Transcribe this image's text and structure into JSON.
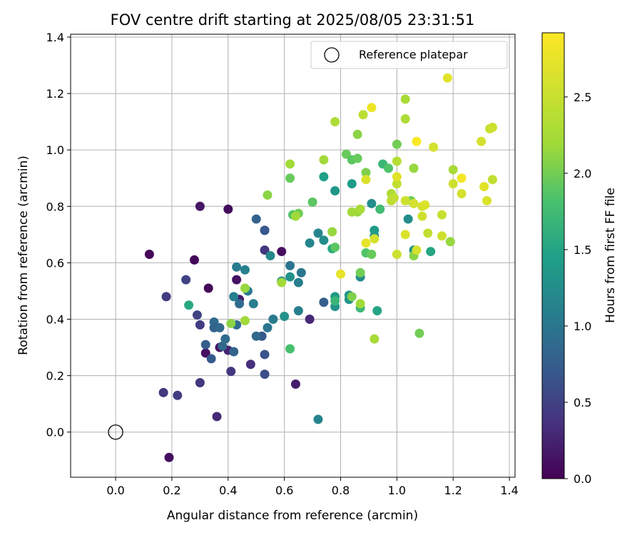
{
  "chart_data": {
    "type": "scatter",
    "title": "FOV centre drift starting at 2025/08/05 23:31:51",
    "xlabel": "Angular distance from reference (arcmin)",
    "ylabel": "Rotation from reference (arcmin)",
    "xlim": [
      -0.16,
      1.42
    ],
    "ylim": [
      -0.16,
      1.41
    ],
    "xticks": [
      0.0,
      0.2,
      0.4,
      0.6,
      0.8,
      1.0,
      1.2,
      1.4
    ],
    "yticks": [
      0.0,
      0.2,
      0.4,
      0.6,
      0.8,
      1.0,
      1.2,
      1.4
    ],
    "grid": true,
    "legend": {
      "placement": "top-right",
      "entries": [
        "Reference platepar"
      ]
    },
    "reference_point": {
      "x": 0.0,
      "y": 0.0
    },
    "colorbar": {
      "label": "Hours from first FF file",
      "colormap": "viridis",
      "range": [
        0.0,
        2.92
      ],
      "ticks": [
        0.0,
        0.5,
        1.0,
        1.5,
        2.0,
        2.5
      ]
    },
    "points": [
      {
        "x": 0.12,
        "y": 0.63,
        "c": 0.05
      },
      {
        "x": 0.19,
        "y": -0.09,
        "c": 0.1
      },
      {
        "x": 0.28,
        "y": 0.61,
        "c": 0.05
      },
      {
        "x": 0.3,
        "y": 0.8,
        "c": 0.15
      },
      {
        "x": 0.4,
        "y": 0.79,
        "c": 0.08
      },
      {
        "x": 0.33,
        "y": 0.51,
        "c": 0.05
      },
      {
        "x": 0.43,
        "y": 0.54,
        "c": 0.12
      },
      {
        "x": 0.44,
        "y": 0.47,
        "c": 0.2
      },
      {
        "x": 0.59,
        "y": 0.64,
        "c": 0.1
      },
      {
        "x": 0.64,
        "y": 0.17,
        "c": 0.2
      },
      {
        "x": 0.32,
        "y": 0.28,
        "c": 0.1
      },
      {
        "x": 0.37,
        "y": 0.3,
        "c": 0.15
      },
      {
        "x": 0.4,
        "y": 0.29,
        "c": 0.25
      },
      {
        "x": 0.36,
        "y": 0.055,
        "c": 0.3
      },
      {
        "x": 0.17,
        "y": 0.14,
        "c": 0.4
      },
      {
        "x": 0.22,
        "y": 0.13,
        "c": 0.45
      },
      {
        "x": 0.3,
        "y": 0.175,
        "c": 0.4
      },
      {
        "x": 0.18,
        "y": 0.48,
        "c": 0.45
      },
      {
        "x": 0.25,
        "y": 0.54,
        "c": 0.5
      },
      {
        "x": 0.29,
        "y": 0.415,
        "c": 0.5
      },
      {
        "x": 0.3,
        "y": 0.38,
        "c": 0.45
      },
      {
        "x": 0.41,
        "y": 0.215,
        "c": 0.4
      },
      {
        "x": 0.48,
        "y": 0.24,
        "c": 0.35
      },
      {
        "x": 0.53,
        "y": 0.645,
        "c": 0.4
      },
      {
        "x": 0.69,
        "y": 0.4,
        "c": 0.3
      },
      {
        "x": 0.53,
        "y": 0.715,
        "c": 0.5
      },
      {
        "x": 0.34,
        "y": 0.26,
        "c": 0.7
      },
      {
        "x": 0.32,
        "y": 0.31,
        "c": 0.75
      },
      {
        "x": 0.38,
        "y": 0.305,
        "c": 0.85
      },
      {
        "x": 0.42,
        "y": 0.285,
        "c": 0.8
      },
      {
        "x": 0.35,
        "y": 0.39,
        "c": 0.9
      },
      {
        "x": 0.35,
        "y": 0.37,
        "c": 0.8
      },
      {
        "x": 0.37,
        "y": 0.37,
        "c": 0.85
      },
      {
        "x": 0.39,
        "y": 0.33,
        "c": 0.9
      },
      {
        "x": 0.43,
        "y": 0.38,
        "c": 0.9
      },
      {
        "x": 0.44,
        "y": 0.455,
        "c": 0.9
      },
      {
        "x": 0.5,
        "y": 0.755,
        "c": 0.8
      },
      {
        "x": 0.53,
        "y": 0.715,
        "c": 0.7
      },
      {
        "x": 0.53,
        "y": 0.275,
        "c": 0.65
      },
      {
        "x": 0.53,
        "y": 0.205,
        "c": 0.6
      },
      {
        "x": 0.52,
        "y": 0.34,
        "c": 0.7
      },
      {
        "x": 0.5,
        "y": 0.34,
        "c": 0.85
      },
      {
        "x": 0.54,
        "y": 0.37,
        "c": 1.0
      },
      {
        "x": 0.56,
        "y": 0.4,
        "c": 1.05
      },
      {
        "x": 0.43,
        "y": 0.585,
        "c": 1.05
      },
      {
        "x": 0.46,
        "y": 0.575,
        "c": 1.1
      },
      {
        "x": 0.47,
        "y": 0.5,
        "c": 1.05
      },
      {
        "x": 0.49,
        "y": 0.455,
        "c": 1.1
      },
      {
        "x": 0.42,
        "y": 0.48,
        "c": 1.1
      },
      {
        "x": 0.55,
        "y": 0.625,
        "c": 1.2
      },
      {
        "x": 0.62,
        "y": 0.59,
        "c": 1.0
      },
      {
        "x": 0.66,
        "y": 0.565,
        "c": 1.0
      },
      {
        "x": 0.65,
        "y": 0.53,
        "c": 1.1
      },
      {
        "x": 0.65,
        "y": 0.43,
        "c": 1.1
      },
      {
        "x": 0.59,
        "y": 0.535,
        "c": 1.25
      },
      {
        "x": 0.6,
        "y": 0.41,
        "c": 1.3
      },
      {
        "x": 0.62,
        "y": 0.55,
        "c": 1.3
      },
      {
        "x": 0.69,
        "y": 0.67,
        "c": 1.15
      },
      {
        "x": 0.72,
        "y": 0.705,
        "c": 1.15
      },
      {
        "x": 0.74,
        "y": 0.68,
        "c": 1.25
      },
      {
        "x": 0.74,
        "y": 0.46,
        "c": 0.75
      },
      {
        "x": 0.72,
        "y": 0.045,
        "c": 1.15
      },
      {
        "x": 0.78,
        "y": 0.855,
        "c": 1.35
      },
      {
        "x": 0.74,
        "y": 0.905,
        "c": 1.45
      },
      {
        "x": 0.78,
        "y": 0.445,
        "c": 1.3
      },
      {
        "x": 0.78,
        "y": 0.48,
        "c": 1.4
      },
      {
        "x": 0.83,
        "y": 0.47,
        "c": 1.3
      },
      {
        "x": 0.83,
        "y": 0.485,
        "c": 1.35
      },
      {
        "x": 0.84,
        "y": 0.88,
        "c": 1.4
      },
      {
        "x": 0.87,
        "y": 0.55,
        "c": 1.25
      },
      {
        "x": 0.91,
        "y": 0.81,
        "c": 1.25
      },
      {
        "x": 0.92,
        "y": 0.695,
        "c": 1.3
      },
      {
        "x": 0.92,
        "y": 0.715,
        "c": 1.4
      },
      {
        "x": 0.93,
        "y": 0.43,
        "c": 1.5
      },
      {
        "x": 1.04,
        "y": 0.755,
        "c": 1.25
      },
      {
        "x": 1.06,
        "y": 0.645,
        "c": 1.3
      },
      {
        "x": 1.12,
        "y": 0.64,
        "c": 1.5
      },
      {
        "x": 0.77,
        "y": 0.65,
        "c": 1.55
      },
      {
        "x": 0.78,
        "y": 0.465,
        "c": 1.7
      },
      {
        "x": 0.87,
        "y": 0.44,
        "c": 1.7
      },
      {
        "x": 0.62,
        "y": 0.295,
        "c": 1.8
      },
      {
        "x": 0.63,
        "y": 0.77,
        "c": 1.85
      },
      {
        "x": 0.7,
        "y": 0.815,
        "c": 1.9
      },
      {
        "x": 0.62,
        "y": 0.9,
        "c": 1.95
      },
      {
        "x": 0.26,
        "y": 0.45,
        "c": 1.55
      },
      {
        "x": 0.41,
        "y": 0.385,
        "c": 2.1
      },
      {
        "x": 0.46,
        "y": 0.395,
        "c": 2.2
      },
      {
        "x": 0.46,
        "y": 0.51,
        "c": 2.15
      },
      {
        "x": 0.54,
        "y": 0.84,
        "c": 2.1
      },
      {
        "x": 0.78,
        "y": 0.655,
        "c": 1.9
      },
      {
        "x": 0.84,
        "y": 0.48,
        "c": 2.05
      },
      {
        "x": 0.87,
        "y": 0.455,
        "c": 2.2
      },
      {
        "x": 0.87,
        "y": 0.565,
        "c": 2.0
      },
      {
        "x": 0.89,
        "y": 0.635,
        "c": 1.85
      },
      {
        "x": 0.91,
        "y": 0.63,
        "c": 1.95
      },
      {
        "x": 0.94,
        "y": 0.79,
        "c": 1.75
      },
      {
        "x": 0.95,
        "y": 0.95,
        "c": 1.7
      },
      {
        "x": 0.97,
        "y": 0.935,
        "c": 1.85
      },
      {
        "x": 0.82,
        "y": 0.985,
        "c": 1.95
      },
      {
        "x": 0.84,
        "y": 0.965,
        "c": 1.9
      },
      {
        "x": 0.86,
        "y": 0.97,
        "c": 1.95
      },
      {
        "x": 0.89,
        "y": 0.92,
        "c": 2.05
      },
      {
        "x": 0.86,
        "y": 1.055,
        "c": 2.1
      },
      {
        "x": 0.86,
        "y": 0.78,
        "c": 2.15
      },
      {
        "x": 0.87,
        "y": 0.79,
        "c": 2.25
      },
      {
        "x": 0.84,
        "y": 0.78,
        "c": 2.2
      },
      {
        "x": 0.78,
        "y": 1.1,
        "c": 2.3
      },
      {
        "x": 0.88,
        "y": 1.125,
        "c": 2.4
      },
      {
        "x": 0.92,
        "y": 0.33,
        "c": 2.25
      },
      {
        "x": 1.03,
        "y": 1.18,
        "c": 2.25
      },
      {
        "x": 1.03,
        "y": 1.11,
        "c": 2.3
      },
      {
        "x": 1.06,
        "y": 0.935,
        "c": 2.15
      },
      {
        "x": 1.06,
        "y": 0.625,
        "c": 2.1
      },
      {
        "x": 1.05,
        "y": 0.82,
        "c": 2.0
      },
      {
        "x": 1.08,
        "y": 0.35,
        "c": 2.0
      },
      {
        "x": 1.19,
        "y": 0.675,
        "c": 2.15
      },
      {
        "x": 1.2,
        "y": 0.93,
        "c": 2.25
      },
      {
        "x": 0.74,
        "y": 0.965,
        "c": 2.2
      },
      {
        "x": 0.62,
        "y": 0.95,
        "c": 2.2
      },
      {
        "x": 0.65,
        "y": 0.775,
        "c": 2.0
      },
      {
        "x": 0.64,
        "y": 0.765,
        "c": 2.2
      },
      {
        "x": 0.59,
        "y": 0.53,
        "c": 2.2
      },
      {
        "x": 0.77,
        "y": 0.71,
        "c": 2.15
      },
      {
        "x": 0.89,
        "y": 0.895,
        "c": 2.65
      },
      {
        "x": 0.89,
        "y": 0.67,
        "c": 2.75
      },
      {
        "x": 0.92,
        "y": 0.685,
        "c": 2.6
      },
      {
        "x": 0.8,
        "y": 0.56,
        "c": 2.75
      },
      {
        "x": 0.91,
        "y": 1.15,
        "c": 2.8
      },
      {
        "x": 0.98,
        "y": 0.845,
        "c": 2.3
      },
      {
        "x": 0.98,
        "y": 0.82,
        "c": 2.4
      },
      {
        "x": 0.99,
        "y": 0.83,
        "c": 2.45
      },
      {
        "x": 1.0,
        "y": 0.96,
        "c": 2.35
      },
      {
        "x": 1.0,
        "y": 0.88,
        "c": 2.45
      },
      {
        "x": 1.0,
        "y": 0.63,
        "c": 2.55
      },
      {
        "x": 1.0,
        "y": 0.905,
        "c": 2.7
      },
      {
        "x": 1.03,
        "y": 0.82,
        "c": 2.55
      },
      {
        "x": 1.03,
        "y": 0.7,
        "c": 2.65
      },
      {
        "x": 1.06,
        "y": 0.81,
        "c": 2.6
      },
      {
        "x": 1.07,
        "y": 0.645,
        "c": 2.6
      },
      {
        "x": 1.09,
        "y": 0.8,
        "c": 2.6
      },
      {
        "x": 1.09,
        "y": 0.765,
        "c": 2.55
      },
      {
        "x": 1.1,
        "y": 0.805,
        "c": 2.65
      },
      {
        "x": 1.11,
        "y": 0.705,
        "c": 2.45
      },
      {
        "x": 1.13,
        "y": 1.01,
        "c": 2.6
      },
      {
        "x": 1.16,
        "y": 0.695,
        "c": 2.55
      },
      {
        "x": 1.16,
        "y": 0.77,
        "c": 2.5
      },
      {
        "x": 1.18,
        "y": 1.255,
        "c": 2.7
      },
      {
        "x": 1.2,
        "y": 0.88,
        "c": 2.55
      },
      {
        "x": 1.23,
        "y": 0.845,
        "c": 2.6
      },
      {
        "x": 1.23,
        "y": 0.9,
        "c": 2.85
      },
      {
        "x": 1.3,
        "y": 1.03,
        "c": 2.6
      },
      {
        "x": 1.31,
        "y": 0.87,
        "c": 2.7
      },
      {
        "x": 1.32,
        "y": 0.82,
        "c": 2.65
      },
      {
        "x": 1.33,
        "y": 1.075,
        "c": 2.5
      },
      {
        "x": 1.34,
        "y": 1.08,
        "c": 2.55
      },
      {
        "x": 1.34,
        "y": 0.895,
        "c": 2.45
      },
      {
        "x": 1.07,
        "y": 1.03,
        "c": 2.9
      },
      {
        "x": 1.0,
        "y": 1.02,
        "c": 2.0
      }
    ]
  }
}
